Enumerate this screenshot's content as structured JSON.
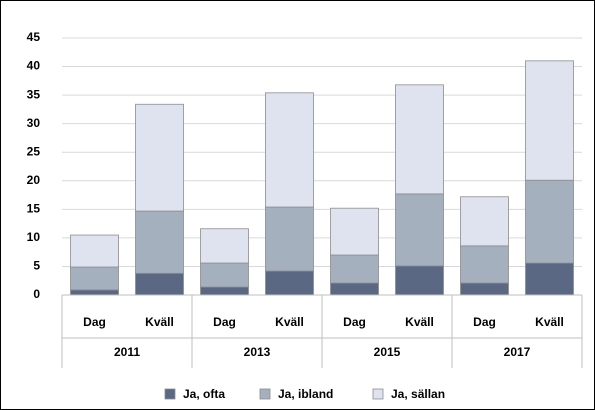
{
  "chart_data": {
    "type": "stacked_bar",
    "categories": [
      "Dag",
      "Kväll",
      "Dag",
      "Kväll",
      "Dag",
      "Kväll",
      "Dag",
      "Kväll"
    ],
    "groups": [
      "2011",
      "2013",
      "2015",
      "2017"
    ],
    "series": [
      {
        "name": "Ja, ofta",
        "color": "#5b6884",
        "values": [
          0.9,
          3.8,
          1.4,
          4.2,
          2.1,
          5.1,
          2.1,
          5.6
        ]
      },
      {
        "name": "Ja, ibland",
        "color": "#a5b0bf",
        "values": [
          4.0,
          10.9,
          4.2,
          11.2,
          4.9,
          12.6,
          6.5,
          14.5
        ]
      },
      {
        "name": "Ja, sällan",
        "color": "#dfe3f0",
        "values": [
          5.6,
          18.7,
          6.0,
          20.0,
          8.2,
          19.1,
          8.6,
          20.9
        ]
      }
    ],
    "ylim": [
      0,
      45
    ],
    "yticks": [
      0,
      5,
      10,
      15,
      20,
      25,
      30,
      35,
      40,
      45
    ],
    "grid": true,
    "legend": "bottom"
  }
}
